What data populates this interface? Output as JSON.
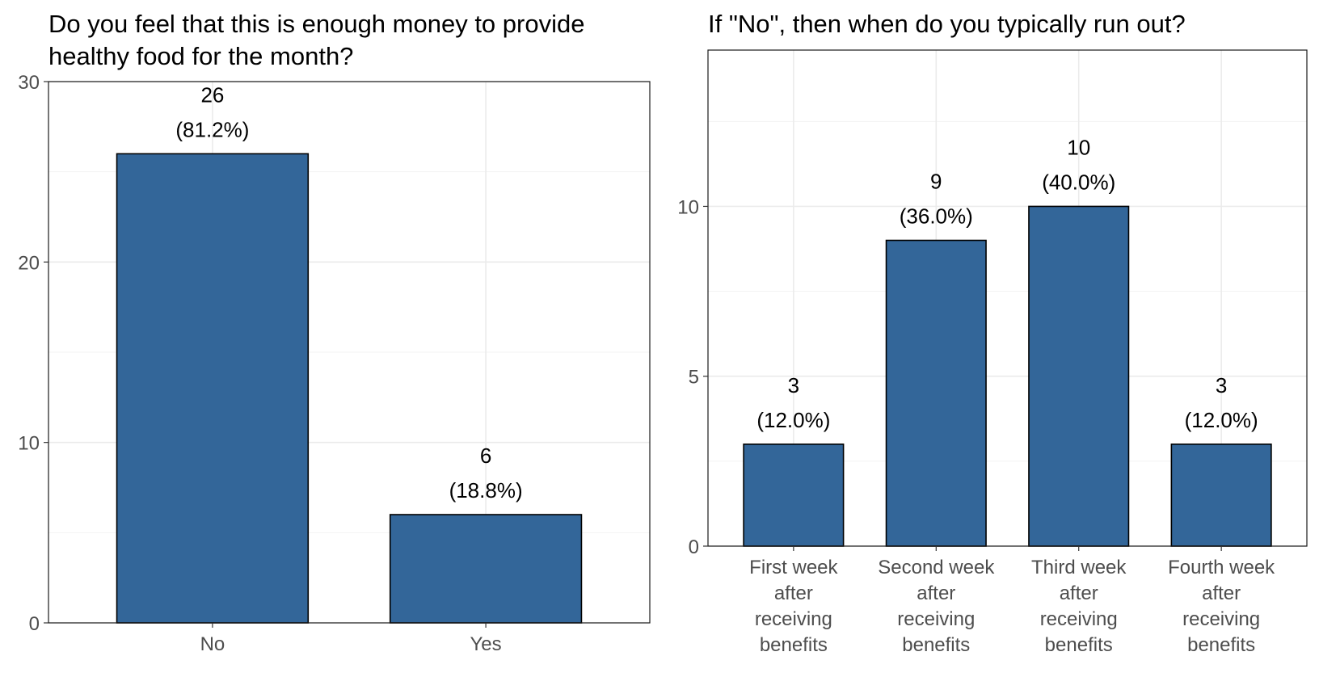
{
  "chart_data": [
    {
      "type": "bar",
      "title": "Do you feel that this is enough money to provide healthy food for the month?",
      "title_lines": [
        "Do you feel that this is enough money to provide",
        "healthy food for the month?"
      ],
      "categories": [
        "No",
        "Yes"
      ],
      "category_lines": [
        [
          "No"
        ],
        [
          "Yes"
        ]
      ],
      "values": [
        26,
        6
      ],
      "labels": [
        [
          "26",
          "(81.2%)"
        ],
        [
          "6",
          "(18.8%)"
        ]
      ],
      "xlabel": "",
      "ylabel": "",
      "ylim": [
        0,
        30
      ],
      "yticks": [
        0,
        10,
        20,
        30
      ],
      "ytick_labels": [
        "0",
        "10",
        "20",
        "30"
      ],
      "grid": true,
      "legend": "none",
      "bar_color": "#336699"
    },
    {
      "type": "bar",
      "title": "If \"No\", then when do you typically run out?",
      "title_lines": [
        "If \"No\", then when do you typically run out?"
      ],
      "categories": [
        "First week after receiving benefits",
        "Second week after receiving benefits",
        "Third week after receiving benefits",
        "Fourth week after receiving benefits"
      ],
      "category_lines": [
        [
          "First week",
          "after",
          "receiving",
          "benefits"
        ],
        [
          "Second week",
          "after",
          "receiving",
          "benefits"
        ],
        [
          "Third week",
          "after",
          "receiving",
          "benefits"
        ],
        [
          "Fourth week",
          "after",
          "receiving",
          "benefits"
        ]
      ],
      "values": [
        3,
        9,
        10,
        3
      ],
      "labels": [
        [
          "3",
          "(12.0%)"
        ],
        [
          "9",
          "(36.0%)"
        ],
        [
          "10",
          "(40.0%)"
        ],
        [
          "3",
          "(12.0%)"
        ]
      ],
      "xlabel": "",
      "ylabel": "",
      "ylim": [
        0,
        10
      ],
      "yticks": [
        0,
        5,
        10
      ],
      "ytick_labels": [
        "0",
        "5",
        "10"
      ],
      "grid": true,
      "legend": "none",
      "bar_color": "#336699"
    }
  ]
}
